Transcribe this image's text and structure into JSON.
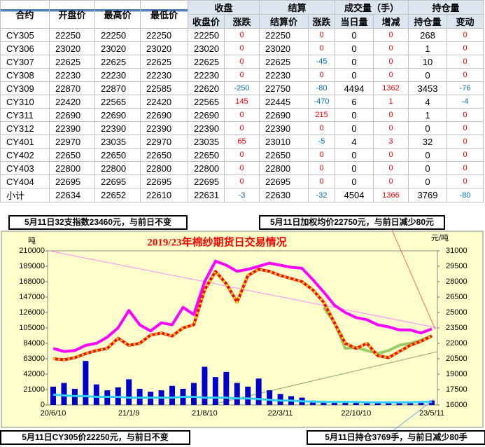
{
  "table": {
    "header_top": [
      "合约",
      "开盘价",
      "最高价",
      "最低价",
      "收盘",
      "结算",
      "成交量（手）",
      "持仓量"
    ],
    "header_sub": [
      "收盘价",
      "涨跌",
      "结算价",
      "涨跌",
      "当日量",
      "增减",
      "持仓量",
      "变动"
    ],
    "rows": [
      [
        "CY305",
        22250,
        22250,
        22250,
        22250,
        0,
        22250,
        0,
        0,
        0,
        268,
        0
      ],
      [
        "CY306",
        23020,
        23020,
        23020,
        23020,
        0,
        23020,
        0,
        0,
        0,
        1,
        0
      ],
      [
        "CY307",
        22625,
        22625,
        22625,
        22625,
        0,
        22625,
        -45,
        0,
        0,
        10,
        0
      ],
      [
        "CY308",
        22230,
        22230,
        22230,
        22230,
        0,
        22230,
        0,
        0,
        0,
        0,
        0
      ],
      [
        "CY309",
        22870,
        22870,
        22585,
        22620,
        -250,
        22750,
        -80,
        4494,
        1362,
        3453,
        -76
      ],
      [
        "CY310",
        22420,
        22565,
        22420,
        22565,
        145,
        22445,
        -470,
        6,
        1,
        4,
        -4
      ],
      [
        "CY311",
        22690,
        22690,
        22690,
        22690,
        0,
        22690,
        215,
        0,
        0,
        1,
        0
      ],
      [
        "CY312",
        22390,
        22390,
        22390,
        22390,
        0,
        22390,
        0,
        0,
        0,
        0,
        0
      ],
      [
        "CY401",
        22970,
        23035,
        22970,
        23035,
        65,
        23010,
        -5,
        4,
        3,
        32,
        0
      ],
      [
        "CY402",
        22650,
        22650,
        22650,
        22650,
        0,
        22650,
        0,
        0,
        0,
        0,
        0
      ],
      [
        "CY403",
        22800,
        22800,
        22800,
        22800,
        0,
        22800,
        0,
        0,
        0,
        0,
        0
      ],
      [
        "CY404",
        22695,
        22695,
        22695,
        22695,
        0,
        22695,
        0,
        0,
        0,
        0,
        0
      ],
      [
        "小计",
        22634,
        22652,
        22610,
        22631,
        -3,
        22630,
        -32,
        4504,
        1366,
        3769,
        -80
      ]
    ]
  },
  "notes": [
    "5月11日32支指数23460元，与前日不变",
    "5月11日加权均价22750元，与前日减少80元",
    "5月11日CY305价22250元，与前日不变",
    "5月11日持仓3769手，与前日减少80手"
  ],
  "chart_data": {
    "type": "line",
    "title": "2019/23年棉纱期货日交易情况",
    "y_label": "吨",
    "y2_label": "元/吨",
    "categories": [
      "20/6/10",
      null,
      null,
      null,
      null,
      null,
      null,
      "21/1/9",
      null,
      null,
      null,
      null,
      null,
      null,
      "21/8/10",
      null,
      null,
      null,
      null,
      null,
      null,
      "22/3/11",
      null,
      null,
      null,
      null,
      null,
      null,
      "22/10/10",
      null,
      null,
      null,
      null,
      null,
      null,
      "23/5/11"
    ],
    "ylim": [
      0,
      210000
    ],
    "yticks": [
      0,
      21000,
      42000,
      63000,
      84000,
      105000,
      126000,
      147000,
      168000,
      189000,
      210000
    ],
    "y2lim": [
      16000,
      31000
    ],
    "y2ticks": [
      16000,
      17500,
      19000,
      20500,
      22000,
      23500,
      25000,
      26500,
      28000,
      29500,
      31000
    ],
    "series": [
      {
        "type": "bar",
        "color": "#0000cc",
        "values": [
          25000,
          30000,
          22000,
          60000,
          28000,
          20000,
          24000,
          35000,
          22000,
          18000,
          20000,
          26000,
          22000,
          30000,
          52000,
          38000,
          45000,
          30000,
          25000,
          36000,
          20000,
          15000,
          12000,
          10000,
          6000,
          5000,
          4000,
          4000,
          5000,
          3000,
          3000,
          3000,
          3000,
          4000,
          3000,
          6000
        ]
      },
      {
        "type": "line",
        "color": "#33ccff",
        "values": [
          14000,
          13000,
          12000,
          12000,
          11000,
          11000,
          11000,
          10000,
          10000,
          10000,
          10000,
          10000,
          11000,
          11000,
          10000,
          10000,
          10000,
          9000,
          9000,
          8000,
          7000,
          6000,
          6000,
          5000,
          4500,
          4000,
          4000,
          4000,
          4000,
          3500,
          3500,
          3500,
          3500,
          3500,
          4000,
          4000
        ]
      },
      {
        "type": "line",
        "axis": "y2",
        "color": "#ff00ff",
        "values": [
          21500,
          21200,
          21300,
          21800,
          22000,
          22600,
          23500,
          25200,
          23800,
          23200,
          24000,
          23800,
          25500,
          24800,
          28000,
          30000,
          29600,
          29000,
          29200,
          29500,
          29800,
          29600,
          29400,
          29300,
          28200,
          27000,
          25700,
          25000,
          24500,
          24300,
          23800,
          23600,
          23300,
          23300,
          23000,
          23400
        ]
      },
      {
        "type": "line",
        "axis": "y2",
        "color": "#99cc66",
        "values": [
          null,
          null,
          null,
          null,
          null,
          null,
          null,
          null,
          null,
          null,
          null,
          null,
          null,
          null,
          null,
          null,
          null,
          null,
          null,
          null,
          null,
          null,
          null,
          null,
          null,
          25500,
          24000,
          21500,
          21600,
          21300,
          21000,
          21300,
          21800,
          22000,
          22300,
          22750
        ]
      },
      {
        "type": "line",
        "axis": "y2",
        "color": "#ff0000",
        "values": [
          20500,
          20400,
          20600,
          21000,
          21300,
          21500,
          22500,
          21800,
          22000,
          22800,
          23000,
          22700,
          23500,
          23800,
          27200,
          29000,
          27800,
          26000,
          28600,
          29200,
          29000,
          28600,
          28300,
          28000,
          27200,
          26000,
          24000,
          22000,
          21500,
          22000,
          20800,
          20600,
          21200,
          21800,
          22200,
          22700
        ]
      }
    ]
  }
}
